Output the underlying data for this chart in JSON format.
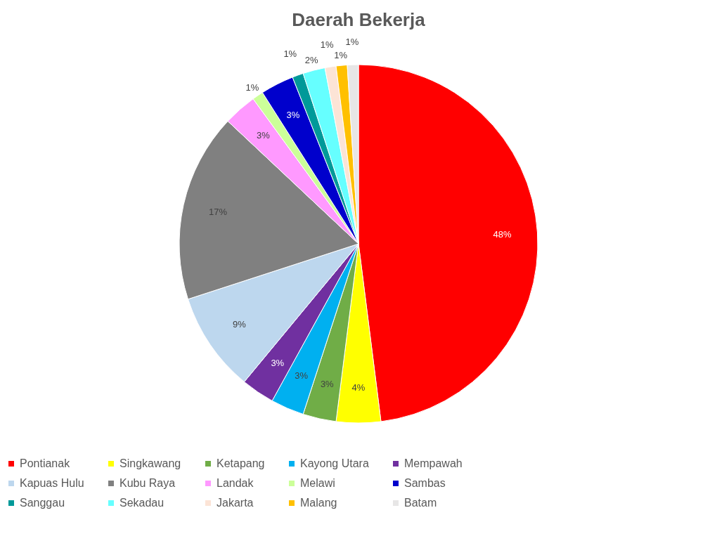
{
  "chart_data": {
    "type": "pie",
    "title": "Daerah Bekerja",
    "categories": [
      "Pontianak",
      "Singkawang",
      "Ketapang",
      "Kayong Utara",
      "Mempawah",
      "Kapuas Hulu",
      "Kubu Raya",
      "Landak",
      "Melawi",
      "Sambas",
      "Sanggau",
      "Sekadau",
      "Jakarta",
      "Malang",
      "Batam"
    ],
    "values": [
      48,
      4,
      3,
      3,
      3,
      9,
      17,
      3,
      1,
      3,
      1,
      2,
      1,
      1,
      1
    ],
    "value_labels": [
      "48%",
      "4%",
      "3%",
      "3%",
      "3%",
      "9%",
      "17%",
      "3%",
      "1%",
      "3%",
      "1%",
      "2%",
      "1%",
      "1%",
      "1%"
    ],
    "colors": [
      "#ff0000",
      "#ffff00",
      "#70ad47",
      "#00b0f0",
      "#7030a0",
      "#bdd7ee",
      "#808080",
      "#ff99ff",
      "#ccff99",
      "#0000cc",
      "#009999",
      "#66ffff",
      "#fce4d6",
      "#ffc000",
      "#e7e6e6"
    ],
    "legend": "bottom"
  }
}
